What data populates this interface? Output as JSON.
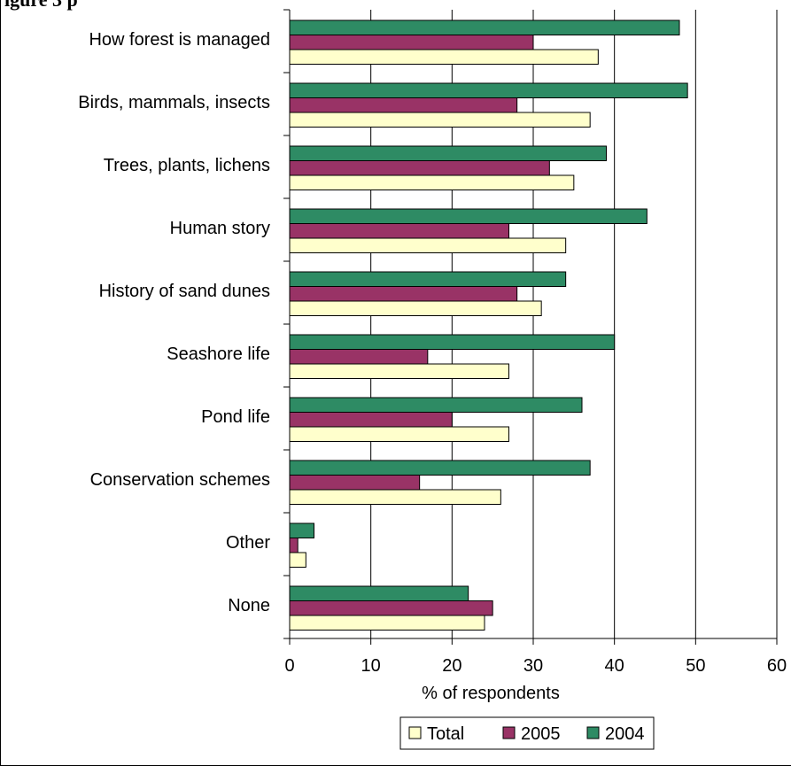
{
  "partial_title": "igure 3 p",
  "chart_data": {
    "type": "bar",
    "orientation": "horizontal",
    "categories": [
      "How forest is managed",
      "Birds, mammals, insects",
      "Trees, plants, lichens",
      "Human story",
      "History of sand dunes",
      "Seashore life",
      "Pond life",
      "Conservation schemes",
      "Other",
      "None"
    ],
    "series": [
      {
        "name": "2004",
        "color": "#2e8b64",
        "values": [
          48,
          49,
          39,
          44,
          34,
          40,
          36,
          37,
          3,
          22
        ]
      },
      {
        "name": "2005",
        "color": "#993366",
        "values": [
          30,
          28,
          32,
          27,
          28,
          17,
          20,
          16,
          1,
          25
        ]
      },
      {
        "name": "Total",
        "color": "#ffffcc",
        "values": [
          38,
          37,
          35,
          34,
          31,
          27,
          27,
          26,
          2,
          24
        ]
      }
    ],
    "legend": [
      "Total",
      "2005",
      "2004"
    ],
    "legend_position": "bottom",
    "xlabel": "% of respondents",
    "xlim": [
      0,
      60
    ],
    "xticks": [
      "0",
      "10",
      "20",
      "30",
      "40",
      "50",
      "60"
    ],
    "grid": "vertical lines at major ticks"
  }
}
